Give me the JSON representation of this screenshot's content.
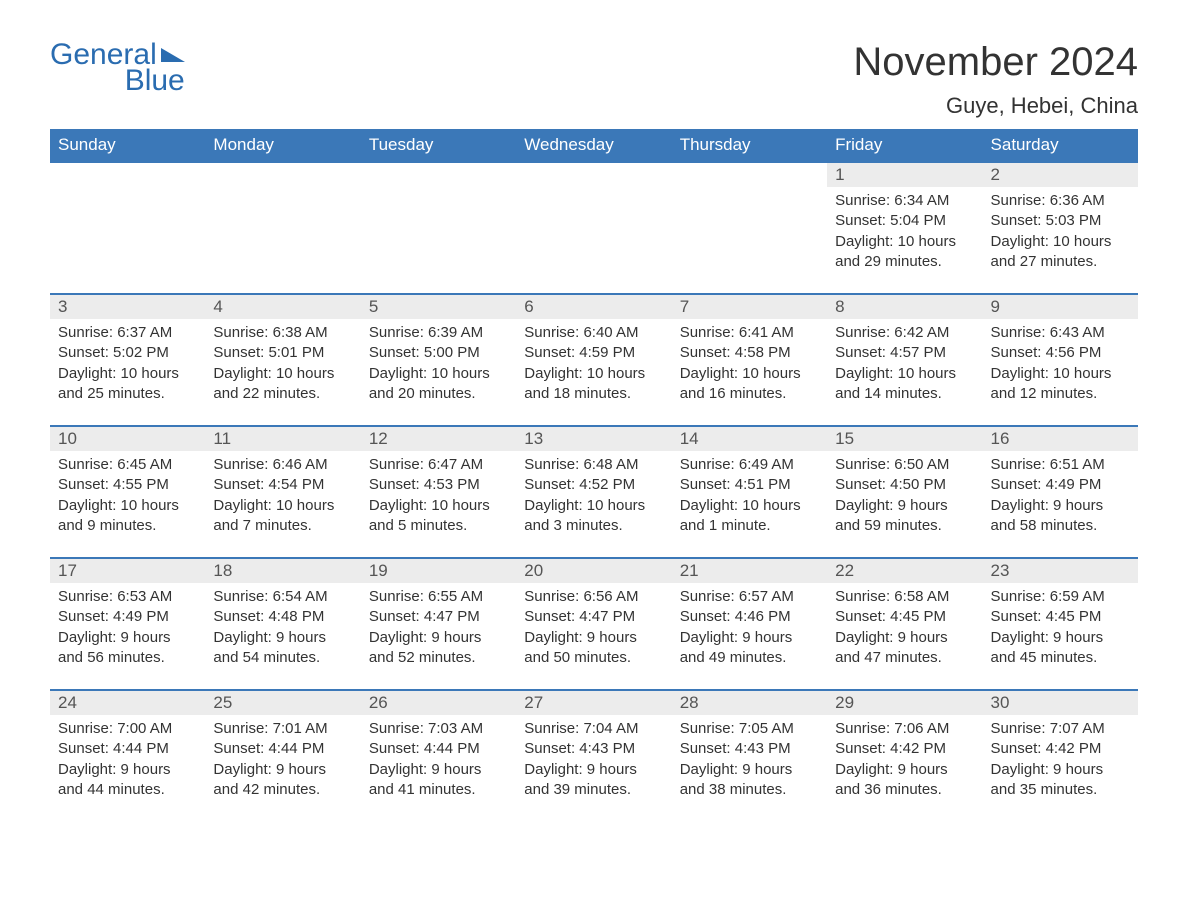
{
  "logo": {
    "top": "General",
    "bottom": "Blue"
  },
  "header": {
    "month": "November 2024",
    "location": "Guye, Hebei, China"
  },
  "colors": {
    "header_bg": "#3b78b8",
    "header_text": "#ffffff",
    "row_border": "#3b78b8",
    "daynum_bg": "#ececec",
    "text": "#333333",
    "logo": "#2a6cb0",
    "background": "#ffffff"
  },
  "days_of_week": [
    "Sunday",
    "Monday",
    "Tuesday",
    "Wednesday",
    "Thursday",
    "Friday",
    "Saturday"
  ],
  "weeks": [
    [
      {
        "empty": true
      },
      {
        "empty": true
      },
      {
        "empty": true
      },
      {
        "empty": true
      },
      {
        "empty": true
      },
      {
        "n": "1",
        "sr": "Sunrise: 6:34 AM",
        "ss": "Sunset: 5:04 PM",
        "d1": "Daylight: 10 hours",
        "d2": "and 29 minutes."
      },
      {
        "n": "2",
        "sr": "Sunrise: 6:36 AM",
        "ss": "Sunset: 5:03 PM",
        "d1": "Daylight: 10 hours",
        "d2": "and 27 minutes."
      }
    ],
    [
      {
        "n": "3",
        "sr": "Sunrise: 6:37 AM",
        "ss": "Sunset: 5:02 PM",
        "d1": "Daylight: 10 hours",
        "d2": "and 25 minutes."
      },
      {
        "n": "4",
        "sr": "Sunrise: 6:38 AM",
        "ss": "Sunset: 5:01 PM",
        "d1": "Daylight: 10 hours",
        "d2": "and 22 minutes."
      },
      {
        "n": "5",
        "sr": "Sunrise: 6:39 AM",
        "ss": "Sunset: 5:00 PM",
        "d1": "Daylight: 10 hours",
        "d2": "and 20 minutes."
      },
      {
        "n": "6",
        "sr": "Sunrise: 6:40 AM",
        "ss": "Sunset: 4:59 PM",
        "d1": "Daylight: 10 hours",
        "d2": "and 18 minutes."
      },
      {
        "n": "7",
        "sr": "Sunrise: 6:41 AM",
        "ss": "Sunset: 4:58 PM",
        "d1": "Daylight: 10 hours",
        "d2": "and 16 minutes."
      },
      {
        "n": "8",
        "sr": "Sunrise: 6:42 AM",
        "ss": "Sunset: 4:57 PM",
        "d1": "Daylight: 10 hours",
        "d2": "and 14 minutes."
      },
      {
        "n": "9",
        "sr": "Sunrise: 6:43 AM",
        "ss": "Sunset: 4:56 PM",
        "d1": "Daylight: 10 hours",
        "d2": "and 12 minutes."
      }
    ],
    [
      {
        "n": "10",
        "sr": "Sunrise: 6:45 AM",
        "ss": "Sunset: 4:55 PM",
        "d1": "Daylight: 10 hours",
        "d2": "and 9 minutes."
      },
      {
        "n": "11",
        "sr": "Sunrise: 6:46 AM",
        "ss": "Sunset: 4:54 PM",
        "d1": "Daylight: 10 hours",
        "d2": "and 7 minutes."
      },
      {
        "n": "12",
        "sr": "Sunrise: 6:47 AM",
        "ss": "Sunset: 4:53 PM",
        "d1": "Daylight: 10 hours",
        "d2": "and 5 minutes."
      },
      {
        "n": "13",
        "sr": "Sunrise: 6:48 AM",
        "ss": "Sunset: 4:52 PM",
        "d1": "Daylight: 10 hours",
        "d2": "and 3 minutes."
      },
      {
        "n": "14",
        "sr": "Sunrise: 6:49 AM",
        "ss": "Sunset: 4:51 PM",
        "d1": "Daylight: 10 hours",
        "d2": "and 1 minute."
      },
      {
        "n": "15",
        "sr": "Sunrise: 6:50 AM",
        "ss": "Sunset: 4:50 PM",
        "d1": "Daylight: 9 hours",
        "d2": "and 59 minutes."
      },
      {
        "n": "16",
        "sr": "Sunrise: 6:51 AM",
        "ss": "Sunset: 4:49 PM",
        "d1": "Daylight: 9 hours",
        "d2": "and 58 minutes."
      }
    ],
    [
      {
        "n": "17",
        "sr": "Sunrise: 6:53 AM",
        "ss": "Sunset: 4:49 PM",
        "d1": "Daylight: 9 hours",
        "d2": "and 56 minutes."
      },
      {
        "n": "18",
        "sr": "Sunrise: 6:54 AM",
        "ss": "Sunset: 4:48 PM",
        "d1": "Daylight: 9 hours",
        "d2": "and 54 minutes."
      },
      {
        "n": "19",
        "sr": "Sunrise: 6:55 AM",
        "ss": "Sunset: 4:47 PM",
        "d1": "Daylight: 9 hours",
        "d2": "and 52 minutes."
      },
      {
        "n": "20",
        "sr": "Sunrise: 6:56 AM",
        "ss": "Sunset: 4:47 PM",
        "d1": "Daylight: 9 hours",
        "d2": "and 50 minutes."
      },
      {
        "n": "21",
        "sr": "Sunrise: 6:57 AM",
        "ss": "Sunset: 4:46 PM",
        "d1": "Daylight: 9 hours",
        "d2": "and 49 minutes."
      },
      {
        "n": "22",
        "sr": "Sunrise: 6:58 AM",
        "ss": "Sunset: 4:45 PM",
        "d1": "Daylight: 9 hours",
        "d2": "and 47 minutes."
      },
      {
        "n": "23",
        "sr": "Sunrise: 6:59 AM",
        "ss": "Sunset: 4:45 PM",
        "d1": "Daylight: 9 hours",
        "d2": "and 45 minutes."
      }
    ],
    [
      {
        "n": "24",
        "sr": "Sunrise: 7:00 AM",
        "ss": "Sunset: 4:44 PM",
        "d1": "Daylight: 9 hours",
        "d2": "and 44 minutes."
      },
      {
        "n": "25",
        "sr": "Sunrise: 7:01 AM",
        "ss": "Sunset: 4:44 PM",
        "d1": "Daylight: 9 hours",
        "d2": "and 42 minutes."
      },
      {
        "n": "26",
        "sr": "Sunrise: 7:03 AM",
        "ss": "Sunset: 4:44 PM",
        "d1": "Daylight: 9 hours",
        "d2": "and 41 minutes."
      },
      {
        "n": "27",
        "sr": "Sunrise: 7:04 AM",
        "ss": "Sunset: 4:43 PM",
        "d1": "Daylight: 9 hours",
        "d2": "and 39 minutes."
      },
      {
        "n": "28",
        "sr": "Sunrise: 7:05 AM",
        "ss": "Sunset: 4:43 PM",
        "d1": "Daylight: 9 hours",
        "d2": "and 38 minutes."
      },
      {
        "n": "29",
        "sr": "Sunrise: 7:06 AM",
        "ss": "Sunset: 4:42 PM",
        "d1": "Daylight: 9 hours",
        "d2": "and 36 minutes."
      },
      {
        "n": "30",
        "sr": "Sunrise: 7:07 AM",
        "ss": "Sunset: 4:42 PM",
        "d1": "Daylight: 9 hours",
        "d2": "and 35 minutes."
      }
    ]
  ]
}
